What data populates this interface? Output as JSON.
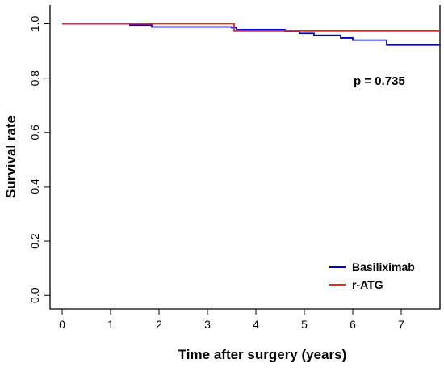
{
  "chart_data": {
    "type": "line",
    "step": true,
    "xlabel": "Time after surgery (years)",
    "ylabel": "Survival rate",
    "xlim": [
      -0.25,
      7.8
    ],
    "ylim": [
      -0.05,
      1.07
    ],
    "xticks": [
      0,
      1,
      2,
      3,
      4,
      5,
      6,
      7
    ],
    "yticks": [
      0.0,
      0.2,
      0.4,
      0.6,
      0.8,
      1.0
    ],
    "ytick_labels": [
      "0.0",
      "0.2",
      "0.4",
      "0.6",
      "0.8",
      "1.0"
    ],
    "annotation": "p = 0.735",
    "legend_position": "bottom-right",
    "series": [
      {
        "name": "Basiliximab",
        "color": "#0000cc",
        "x": [
          0,
          1.4,
          1.85,
          3.5,
          3.6,
          4.6,
          4.9,
          5.2,
          5.75,
          6.0,
          6.7,
          7.8
        ],
        "y": [
          1.0,
          0.995,
          0.988,
          0.985,
          0.978,
          0.972,
          0.965,
          0.958,
          0.948,
          0.94,
          0.922,
          0.922
        ]
      },
      {
        "name": "r-ATG",
        "color": "#e8281e",
        "x": [
          0,
          3.5,
          3.55,
          4.8,
          7.8
        ],
        "y": [
          1.0,
          1.0,
          0.975,
          0.975,
          0.975
        ]
      }
    ]
  }
}
